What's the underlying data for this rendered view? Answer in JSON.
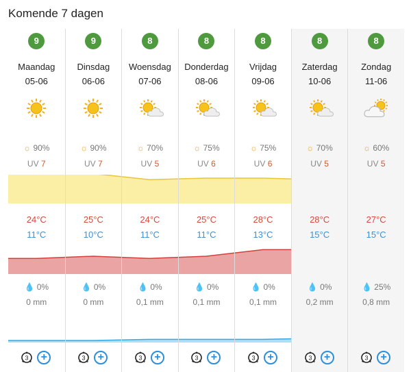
{
  "title": "Komende 7 dagen",
  "days": [
    {
      "score": "9",
      "name": "Maandag",
      "date": "05-06",
      "icon": "sun-icon",
      "sun": "90%",
      "uv_label": "UV",
      "uv": "7",
      "tmax": "24°C",
      "tmin": "11°C",
      "rain_pct": "0%",
      "rain_mm": "0 mm",
      "weekend": false
    },
    {
      "score": "9",
      "name": "Dinsdag",
      "date": "06-06",
      "icon": "sun-icon",
      "sun": "90%",
      "uv_label": "UV",
      "uv": "7",
      "tmax": "25°C",
      "tmin": "10°C",
      "rain_pct": "0%",
      "rain_mm": "0 mm",
      "weekend": false
    },
    {
      "score": "8",
      "name": "Woensdag",
      "date": "07-06",
      "icon": "sun-cloud-icon",
      "sun": "70%",
      "uv_label": "UV",
      "uv": "5",
      "tmax": "24°C",
      "tmin": "11°C",
      "rain_pct": "0%",
      "rain_mm": "0,1 mm",
      "weekend": false
    },
    {
      "score": "8",
      "name": "Donderdag",
      "date": "08-06",
      "icon": "sun-cloud-icon",
      "sun": "75%",
      "uv_label": "UV",
      "uv": "6",
      "tmax": "25°C",
      "tmin": "11°C",
      "rain_pct": "0%",
      "rain_mm": "0,1 mm",
      "weekend": false
    },
    {
      "score": "8",
      "name": "Vrijdag",
      "date": "09-06",
      "icon": "sun-cloud-icon",
      "sun": "75%",
      "uv_label": "UV",
      "uv": "6",
      "tmax": "28°C",
      "tmin": "13°C",
      "rain_pct": "0%",
      "rain_mm": "0,1 mm",
      "weekend": false
    },
    {
      "score": "8",
      "name": "Zaterdag",
      "date": "10-06",
      "icon": "sun-cloud-icon",
      "sun": "70%",
      "uv_label": "UV",
      "uv": "5",
      "tmax": "28°C",
      "tmin": "15°C",
      "rain_pct": "0%",
      "rain_mm": "0,2 mm",
      "weekend": true
    },
    {
      "score": "8",
      "name": "Zondag",
      "date": "11-06",
      "icon": "cloud-sun-icon",
      "sun": "60%",
      "uv_label": "UV",
      "uv": "5",
      "tmax": "27°C",
      "tmin": "15°C",
      "rain_pct": "25%",
      "rain_mm": "0,8 mm",
      "weekend": true
    }
  ],
  "colors": {
    "score_badge": "#4f9a3f",
    "sun_band_fill": "#fbefa6",
    "sun_band_line": "#e8c53a",
    "temp_band_fill": "#eba4a4",
    "temp_band_line": "#d0403a",
    "rain_band_fill": "#aee0f5",
    "rain_band_line": "#3aa6e0",
    "add_button": "#2d8fd9"
  },
  "chart_data": [
    {
      "type": "area",
      "series": [
        {
          "name": "",
          "values": [
            90,
            90,
            70,
            75,
            75,
            70,
            60
          ]
        }
      ]
    },
    {
      "type": "area",
      "series": [
        {
          "name": "",
          "values": [
            24,
            25,
            24,
            25,
            28,
            28,
            27
          ]
        }
      ]
    },
    {
      "type": "area",
      "series": [
        {
          "name": "",
          "values": [
            0,
            0,
            0.1,
            0.1,
            0.1,
            0.2,
            0.8
          ]
        }
      ]
    }
  ]
}
